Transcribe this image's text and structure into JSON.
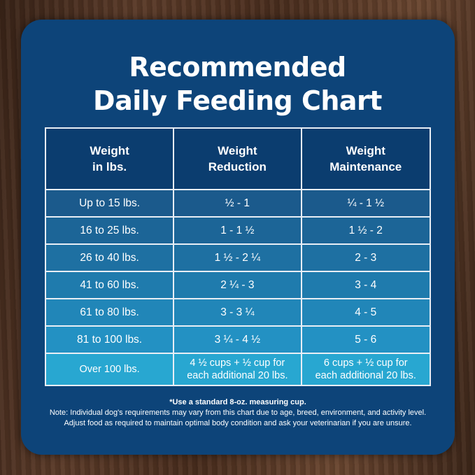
{
  "title": {
    "line1": "Recommended",
    "line2": "Daily Feeding Chart"
  },
  "table": {
    "headers": [
      {
        "line1": "Weight",
        "line2": "in lbs."
      },
      {
        "line1": "Weight",
        "line2": "Reduction"
      },
      {
        "line1": "Weight",
        "line2": "Maintenance"
      }
    ],
    "rows": [
      [
        "Up to 15 lbs.",
        "½ - 1",
        "¼ - 1 ½"
      ],
      [
        "16 to 25 lbs.",
        "1 - 1 ½",
        "1 ½ - 2"
      ],
      [
        "26 to 40 lbs.",
        "1 ½ - 2 ¼",
        "2 - 3"
      ],
      [
        "41 to 60 lbs.",
        "2 ¼ - 3",
        "3 - 4"
      ],
      [
        "61 to 80 lbs.",
        "3 - 3 ¼",
        "4 - 5"
      ],
      [
        "81 to 100 lbs.",
        "3 ¼ - 4 ½",
        "5 - 6"
      ]
    ],
    "last_row": {
      "weight": "Over 100 lbs.",
      "reduction_line1": "4 ½ cups  + ½ cup for",
      "reduction_line2": "each additional 20 lbs.",
      "maintenance_line1": "6 cups  + ½ cup for",
      "maintenance_line2": "each additional 20 lbs."
    },
    "row_colors": [
      "#1b5a8c",
      "#1c6597",
      "#1e70a2",
      "#1f7bad",
      "#2186b8",
      "#2391c3",
      "#28a7d1"
    ]
  },
  "notes": {
    "cup": "*Use a standard 8-oz. measuring cup.",
    "line1": "Note: Individual dog's requirements may vary from this chart due to age, breed, environment, and activity level.",
    "line2": "Adjust food as required to maintain optimal body condition and ask your veterinarian if you are unsure."
  },
  "colors": {
    "panel": "#0d4479",
    "header": "#0b3d6f"
  }
}
